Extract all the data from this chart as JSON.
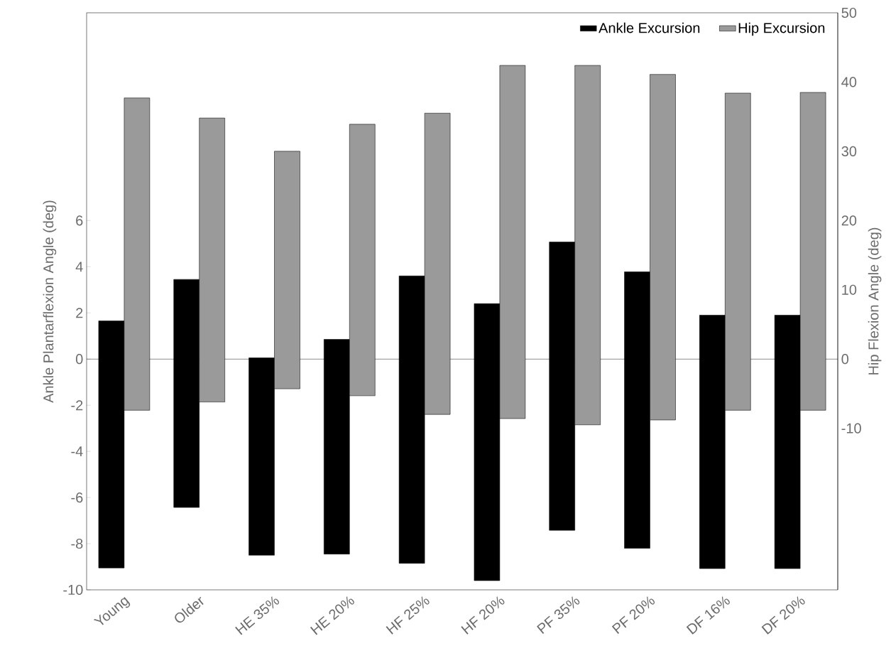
{
  "chart_data": {
    "type": "bar",
    "ylabel": "Ankle Plantarflexion Angle (deg)",
    "y2label": "Hip Flexion Angle (deg)",
    "categories": [
      "Young",
      "Older",
      "HE 35%",
      "HE 20%",
      "HF 25%",
      "HF 20%",
      "PF 35%",
      "PF 20%",
      "DF 16%",
      "DF 20%"
    ],
    "series": [
      {
        "name": "Ankle Excursion",
        "color": "#000000",
        "base": [
          -9.05,
          -6.43,
          -8.5,
          -8.45,
          -8.85,
          -9.6,
          -7.42,
          -8.2,
          -9.08,
          -9.08
        ],
        "values": [
          10.7,
          9.88,
          8.55,
          9.3,
          12.45,
          12.0,
          12.49,
          11.98,
          10.98,
          10.98
        ]
      },
      {
        "name": "Hip Excursion",
        "color": "#9a9a9a",
        "axis": "y2",
        "base": [
          -7.4,
          -6.2,
          -4.3,
          -5.3,
          -8.0,
          -8.6,
          -9.5,
          -8.8,
          -7.4,
          -7.4
        ],
        "values": [
          45.1,
          41.0,
          34.3,
          39.2,
          43.5,
          51.0,
          51.9,
          49.9,
          45.8,
          45.9
        ]
      }
    ],
    "ylim": [
      -10,
      15
    ],
    "yticks": [
      -10,
      -8,
      -6,
      -4,
      -2,
      0,
      2,
      4,
      6
    ],
    "y2lim": [
      -33.33,
      50
    ],
    "y2ticks": [
      -10,
      0,
      10,
      20,
      30,
      40,
      50
    ],
    "ref_lines": [
      {
        "axis": "y",
        "value": 0,
        "color": "#000000"
      }
    ],
    "legend": "top right",
    "grid": false
  }
}
